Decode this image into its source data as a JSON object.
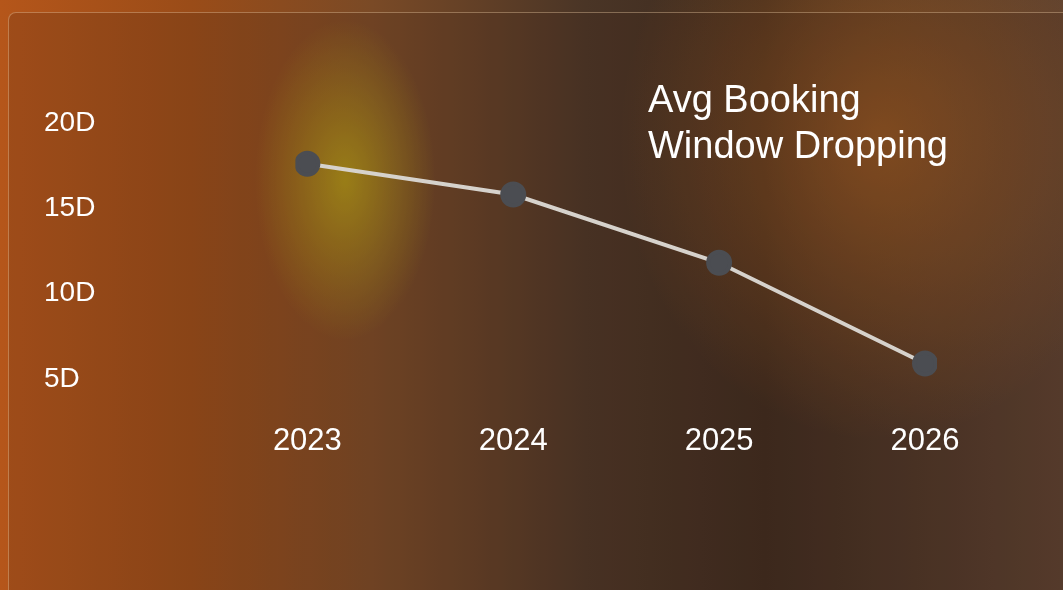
{
  "chart_data": {
    "type": "line",
    "title": "Avg Booking Window Dropping",
    "categories": [
      "2023",
      "2024",
      "2025",
      "2026"
    ],
    "values": [
      17.6,
      15.8,
      11.8,
      5.9
    ],
    "color": "#d6d2cc",
    "ylim": [
      5,
      20
    ],
    "yticks": [
      {
        "value": 5,
        "label": "5D"
      },
      {
        "value": 10,
        "label": "10D"
      },
      {
        "value": 15,
        "label": "15D"
      },
      {
        "value": 20,
        "label": "20D"
      }
    ],
    "grid": false,
    "marker": "circle",
    "line_style": "solid"
  }
}
